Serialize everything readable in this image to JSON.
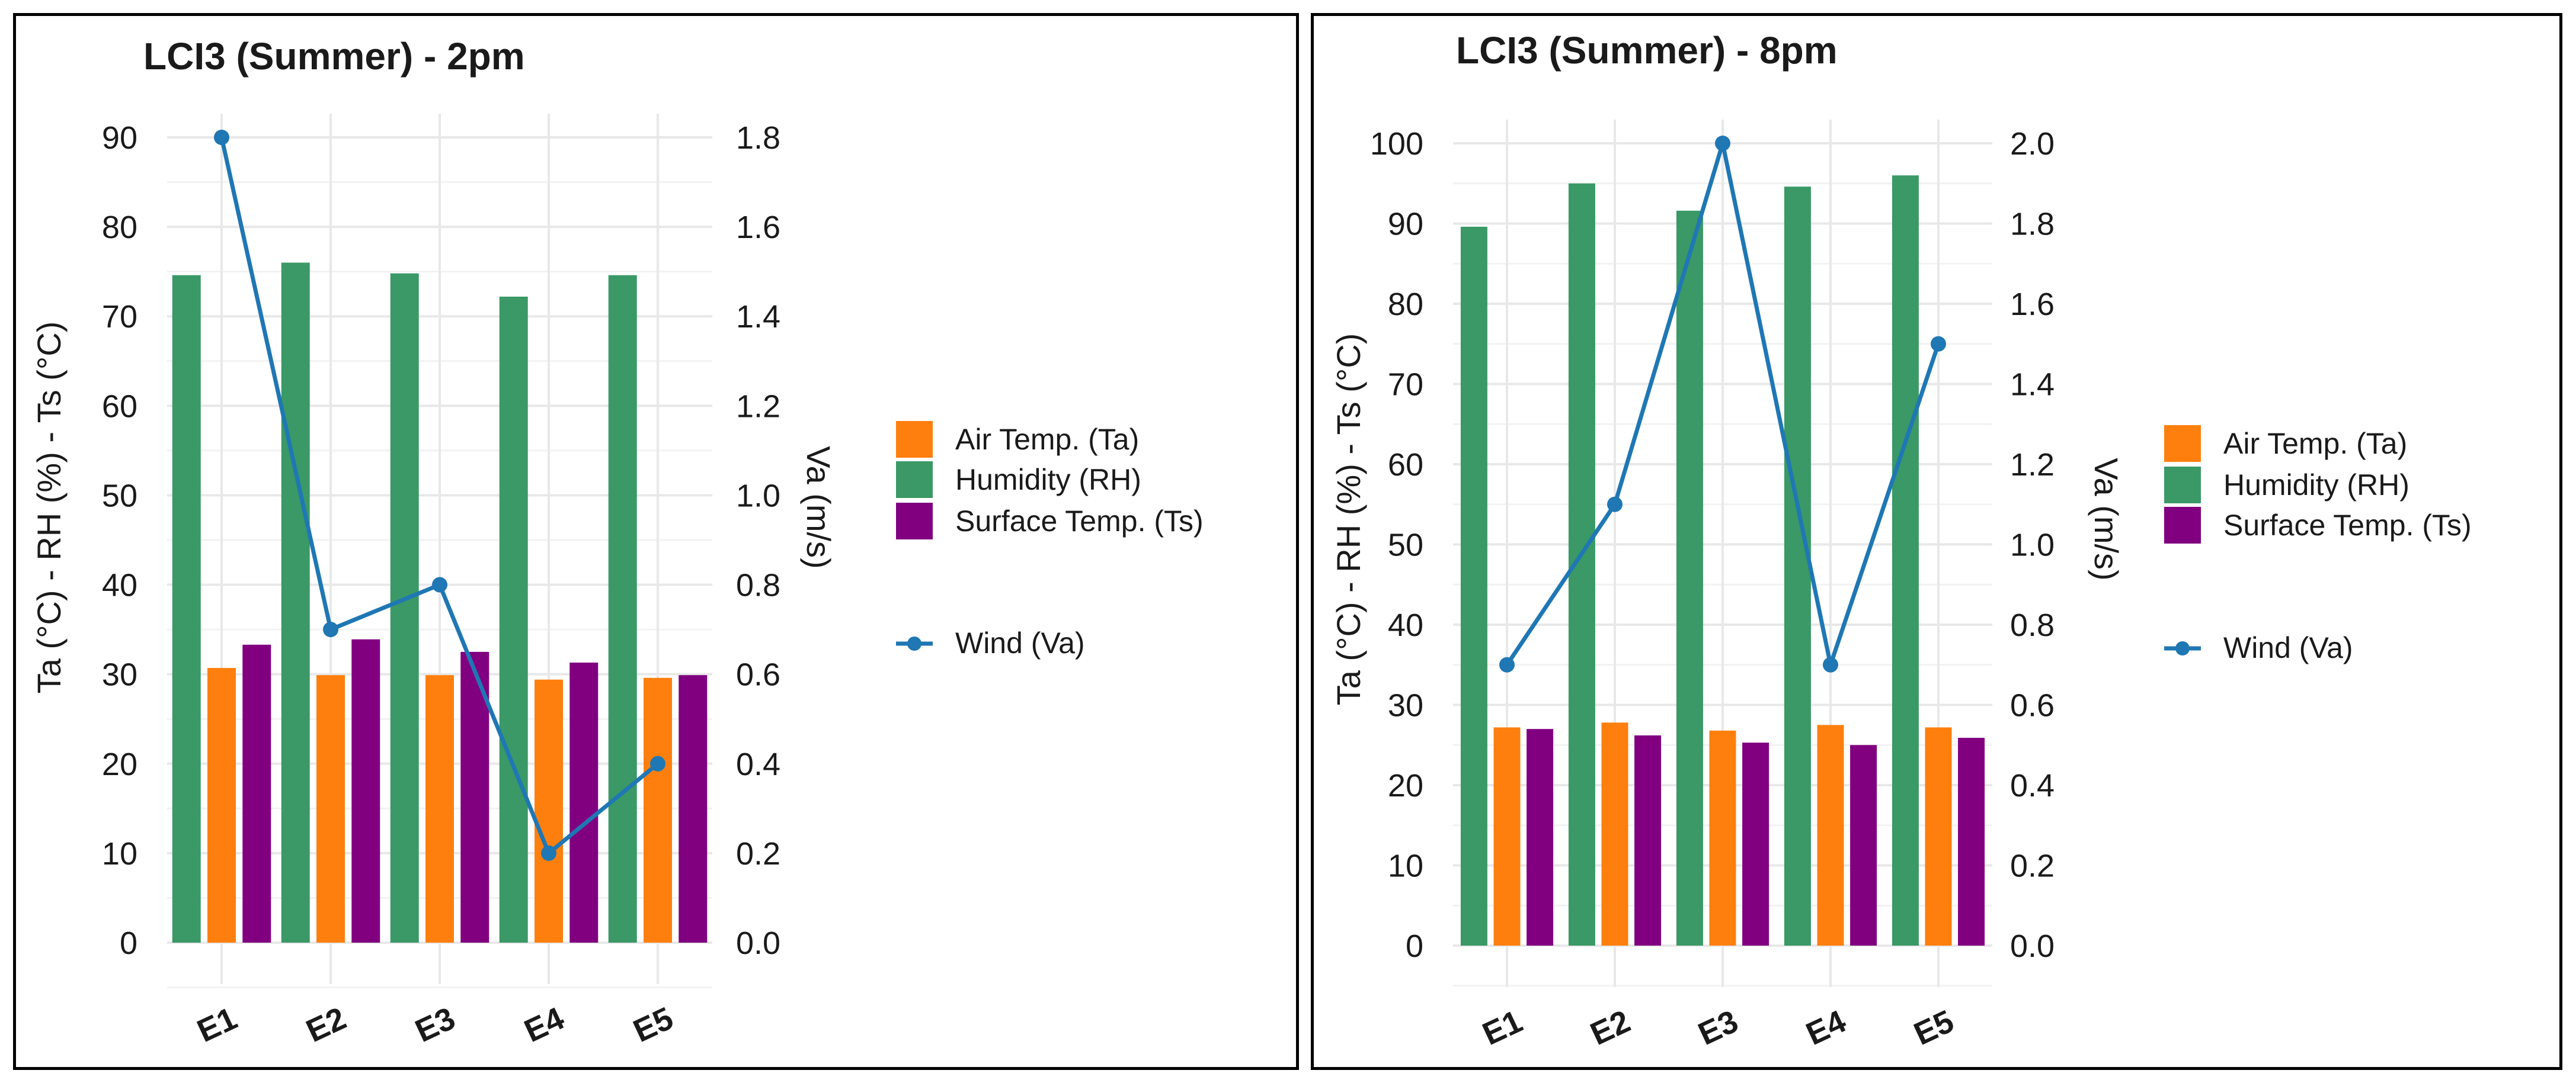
{
  "legend": {
    "ta": "Air Temp. (Ta)",
    "rh": "Humidity (RH)",
    "ts": "Surface Temp. (Ts)",
    "wind": "Wind (Va)"
  },
  "colors": {
    "ta": "#FF7F0E",
    "rh": "#3A9966",
    "ts": "#800080",
    "wind": "#1F77B4",
    "grid": "#e8e8e8"
  },
  "chart_data": [
    {
      "type": "bar",
      "title": "LCI3 (Summer) - 2pm",
      "xlabel": "",
      "ylabel": "Ta (°C) - RH (%) - Ts (°C)",
      "y2label": "Va (m/s)",
      "categories": [
        "E1",
        "E2",
        "E3",
        "E4",
        "E5"
      ],
      "ylim": [
        0,
        90
      ],
      "yticks": [
        0,
        10,
        20,
        30,
        40,
        50,
        60,
        70,
        80,
        90
      ],
      "y2lim": [
        0,
        1.8
      ],
      "y2ticks": [
        "0.0",
        "0.2",
        "0.4",
        "0.6",
        "0.8",
        "1.0",
        "1.2",
        "1.4",
        "1.6",
        "1.8"
      ],
      "series": [
        {
          "name": "Humidity (RH)",
          "key": "rh",
          "values": [
            74.6,
            76.0,
            74.8,
            72.2,
            74.6
          ]
        },
        {
          "name": "Air Temp. (Ta)",
          "key": "ta",
          "values": [
            30.7,
            29.9,
            29.9,
            29.4,
            29.6
          ]
        },
        {
          "name": "Surface Temp. (Ts)",
          "key": "ts",
          "values": [
            33.3,
            33.9,
            32.5,
            31.3,
            29.9
          ]
        }
      ],
      "line": {
        "name": "Wind (Va)",
        "values": [
          1.8,
          0.7,
          0.8,
          0.2,
          0.4
        ]
      },
      "legend_position": "right"
    },
    {
      "type": "bar",
      "title": "LCI3 (Summer) - 8pm",
      "xlabel": "",
      "ylabel": "Ta (°C) - RH (%) - Ts (°C)",
      "y2label": "Va (m/s)",
      "categories": [
        "E1",
        "E2",
        "E3",
        "E4",
        "E5"
      ],
      "ylim": [
        0,
        100
      ],
      "yticks": [
        0,
        10,
        20,
        30,
        40,
        50,
        60,
        70,
        80,
        90,
        100
      ],
      "y2lim": [
        0,
        2.0
      ],
      "y2ticks": [
        "0.0",
        "0.2",
        "0.4",
        "0.6",
        "0.8",
        "1.0",
        "1.2",
        "1.4",
        "1.6",
        "1.8",
        "2.0"
      ],
      "series": [
        {
          "name": "Humidity (RH)",
          "key": "rh",
          "values": [
            89.6,
            95.0,
            91.6,
            94.6,
            96.0
          ]
        },
        {
          "name": "Air Temp. (Ta)",
          "key": "ta",
          "values": [
            27.2,
            27.8,
            26.8,
            27.5,
            27.2
          ]
        },
        {
          "name": "Surface Temp. (Ts)",
          "key": "ts",
          "values": [
            27.0,
            26.2,
            25.3,
            25.0,
            25.9
          ]
        }
      ],
      "line": {
        "name": "Wind (Va)",
        "values": [
          0.7,
          1.1,
          2.0,
          0.7,
          1.5
        ]
      },
      "legend_position": "right"
    }
  ]
}
